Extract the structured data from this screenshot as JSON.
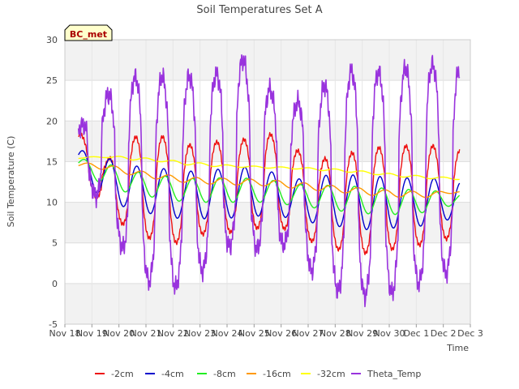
{
  "chart_data": {
    "type": "line",
    "title": "Soil Temperatures Set A",
    "xlabel": "Time",
    "ylabel": "Soil Temperature (C)",
    "badge": "BC_met",
    "ylim": [
      -5,
      30
    ],
    "xlim": [
      0,
      15
    ],
    "yticks": [
      -5,
      0,
      5,
      10,
      15,
      20,
      25,
      30
    ],
    "xticks": [
      {
        "v": 0,
        "label": "Nov 18"
      },
      {
        "v": 1,
        "label": "Nov 19"
      },
      {
        "v": 2,
        "label": "Nov 20"
      },
      {
        "v": 3,
        "label": "Nov 21"
      },
      {
        "v": 4,
        "label": "Nov 22"
      },
      {
        "v": 5,
        "label": "Nov 23"
      },
      {
        "v": 6,
        "label": "Nov 24"
      },
      {
        "v": 7,
        "label": "Nov 25"
      },
      {
        "v": 8,
        "label": "Nov 26"
      },
      {
        "v": 9,
        "label": "Nov 27"
      },
      {
        "v": 10,
        "label": "Nov 28"
      },
      {
        "v": 11,
        "label": "Nov 29"
      },
      {
        "v": 12,
        "label": "Nov 30"
      },
      {
        "v": 13,
        "label": "Dec 1"
      },
      {
        "v": 14,
        "label": "Dec 2"
      },
      {
        "v": 15,
        "label": "Dec 3"
      }
    ],
    "x_units": "days since Nov 18 00:00",
    "grid": true,
    "banded_background": true,
    "legend_position": "bottom",
    "series": [
      {
        "name": "-2cm",
        "color": "#ee1111",
        "min": [
          13.3,
          9.2,
          6.2,
          5.2,
          4.9,
          6.8,
          6.0,
          7.3,
          6.4,
          4.5,
          4.0,
          3.6,
          4.6,
          4.8,
          5.9
        ],
        "max": [
          18.7,
          15.0,
          18.0,
          18.2,
          17.0,
          17.4,
          17.6,
          18.6,
          16.5,
          15.3,
          16.0,
          16.7,
          16.9,
          17.0,
          16.4
        ]
      },
      {
        "name": "-4cm",
        "color": "#0000cc",
        "min": [
          13.6,
          10.0,
          9.2,
          8.3,
          7.9,
          8.0,
          8.1,
          8.4,
          8.0,
          7.2,
          6.9,
          6.5,
          7.0,
          7.1,
          8.2
        ],
        "max": [
          16.5,
          15.5,
          14.5,
          14.2,
          13.8,
          14.0,
          14.4,
          13.9,
          12.8,
          13.3,
          13.4,
          13.2,
          13.0,
          13.0,
          12.5
        ]
      },
      {
        "name": "-8cm",
        "color": "#22ee22",
        "min": [
          14.0,
          12.0,
          11.0,
          10.5,
          10.0,
          10.0,
          10.0,
          10.0,
          9.6,
          9.2,
          8.8,
          8.5,
          8.5,
          8.8,
          9.8
        ],
        "max": [
          15.4,
          14.8,
          13.8,
          13.3,
          12.9,
          13.0,
          13.0,
          12.8,
          12.2,
          12.1,
          12.0,
          11.8,
          11.6,
          11.5,
          11.0
        ]
      },
      {
        "name": "-16cm",
        "color": "#ff9900",
        "min": [
          14.4,
          14.0,
          13.3,
          12.8,
          12.4,
          12.2,
          12.1,
          12.0,
          11.7,
          11.4,
          11.1,
          10.8,
          10.6,
          10.6,
          11.2
        ],
        "max": [
          14.9,
          14.7,
          14.0,
          13.5,
          13.1,
          13.0,
          12.9,
          12.8,
          12.5,
          12.2,
          11.9,
          11.6,
          11.4,
          11.3,
          11.4
        ]
      },
      {
        "name": "-32cm",
        "color": "#ffff00",
        "min": [
          15.4,
          15.5,
          15.2,
          15.0,
          14.6,
          14.4,
          14.3,
          14.2,
          14.1,
          13.9,
          13.7,
          13.4,
          13.1,
          12.9,
          12.8
        ],
        "max": [
          15.5,
          15.7,
          15.6,
          15.3,
          15.0,
          14.7,
          14.5,
          14.4,
          14.3,
          14.2,
          14.0,
          13.7,
          13.4,
          13.2,
          13.0
        ]
      },
      {
        "name": "Theta_Temp",
        "color": "#9933dd",
        "min": [
          13.8,
          9.0,
          1.5,
          -0.5,
          -0.5,
          3.0,
          5.5,
          3.5,
          5.5,
          -0.8,
          -1.0,
          -1.8,
          -0.8,
          0.5,
          1.7
        ],
        "max": [
          19.0,
          23.0,
          25.4,
          25.4,
          25.5,
          25.5,
          27.9,
          24.1,
          22.1,
          24.2,
          26.1,
          26.0,
          26.4,
          27.0,
          26.4
        ]
      }
    ]
  }
}
